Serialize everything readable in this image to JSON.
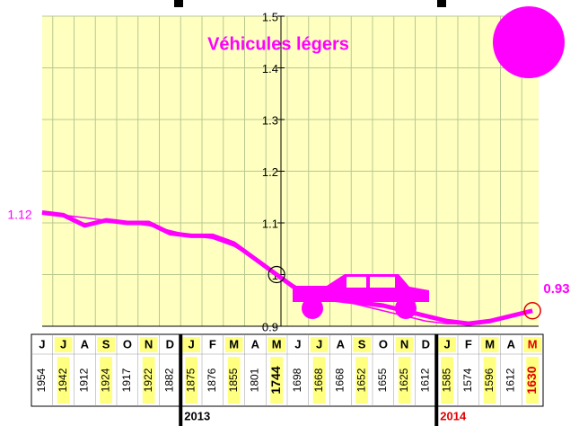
{
  "chart_data": {
    "type": "line",
    "title": "Véhicules légers",
    "categories": [
      "J",
      "J",
      "A",
      "S",
      "O",
      "N",
      "D",
      "J",
      "F",
      "M",
      "A",
      "M",
      "J",
      "J",
      "A",
      "S",
      "O",
      "N",
      "D",
      "J",
      "F",
      "M",
      "A",
      "M"
    ],
    "counts": [
      1954,
      1942,
      1912,
      1924,
      1917,
      1922,
      1882,
      1875,
      1876,
      1855,
      1801,
      1744,
      1698,
      1668,
      1668,
      1652,
      1655,
      1625,
      1612,
      1585,
      1574,
      1596,
      1612,
      1630
    ],
    "years": [
      "2013",
      "2014"
    ],
    "series": [
      {
        "color": "#ff00ff",
        "width": 5,
        "values": [
          1.12,
          1.115,
          1.095,
          1.105,
          1.1,
          1.1,
          1.08,
          1.075,
          1.075,
          1.06,
          1.03,
          1.0,
          0.97,
          0.955,
          0.95,
          0.945,
          0.94,
          0.93,
          0.92,
          0.91,
          0.905,
          0.91,
          0.92,
          0.93
        ]
      },
      {
        "color": "#ff00ff",
        "width": 1.5,
        "values": [
          1.12,
          1.115,
          1.11,
          1.105,
          1.1,
          1.095,
          1.085,
          1.075,
          1.07,
          1.055,
          1.03,
          1.0,
          0.975,
          0.96,
          0.95,
          0.94,
          0.93,
          0.92,
          0.91,
          0.905,
          0.905,
          0.91,
          0.92,
          0.93
        ]
      }
    ],
    "start_label": "1.12",
    "end_label": "0.93",
    "ylim": [
      0.9,
      1.5
    ],
    "yticks": [
      0.9,
      1.0,
      1.1,
      1.2,
      1.3,
      1.4,
      1.5
    ],
    "grid": true
  }
}
